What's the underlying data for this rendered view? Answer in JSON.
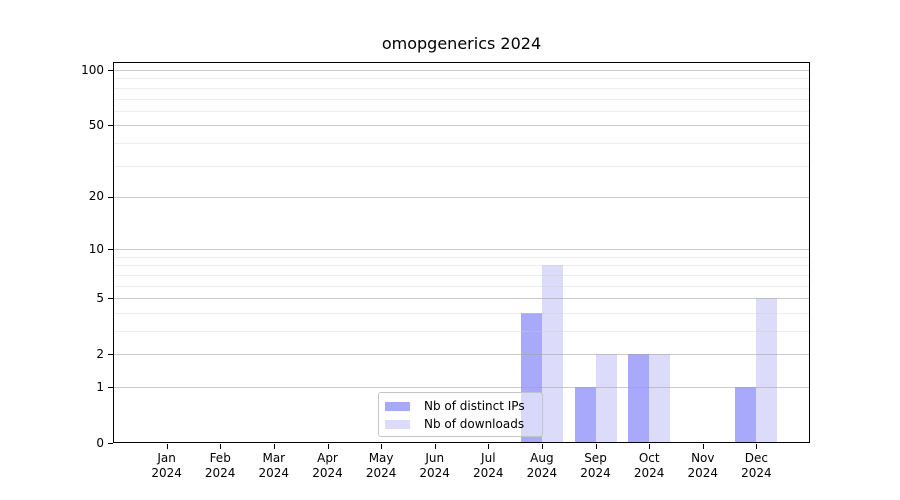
{
  "chart_data": {
    "type": "bar",
    "title": "omopgenerics 2024",
    "categories": [
      "Jan",
      "Feb",
      "Mar",
      "Apr",
      "May",
      "Jun",
      "Jul",
      "Aug",
      "Sep",
      "Oct",
      "Nov",
      "Dec"
    ],
    "x_tick_second_line": "2024",
    "series": [
      {
        "name": "Nb of distinct IPs",
        "color": "#a9a9fb",
        "values": [
          0,
          0,
          0,
          0,
          0,
          0,
          0,
          4,
          1,
          2,
          0,
          1
        ]
      },
      {
        "name": "Nb of downloads",
        "color": "#dcdcfa",
        "values": [
          0,
          0,
          0,
          0,
          0,
          0,
          0,
          8,
          2,
          2,
          0,
          5
        ]
      }
    ],
    "yscale": "log1p",
    "ylim": [
      0,
      110.5
    ],
    "y_tick_labels": [
      0,
      1,
      2,
      5,
      10,
      20,
      50,
      100
    ],
    "y_minor_gridlines": [
      3,
      4,
      6,
      7,
      8,
      9,
      30,
      40,
      60,
      70,
      80,
      90
    ],
    "grid": "horizontal",
    "legend_position": "inside-bottom-center"
  },
  "colors": {
    "bar_distinct_ips": "#a9a9fb",
    "bar_downloads": "#dcdcfa",
    "axis": "#000000",
    "major_grid": "#d0d0d0",
    "minor_grid": "#ececec",
    "legend_border": "#c4c4c4",
    "background": "#ffffff"
  }
}
